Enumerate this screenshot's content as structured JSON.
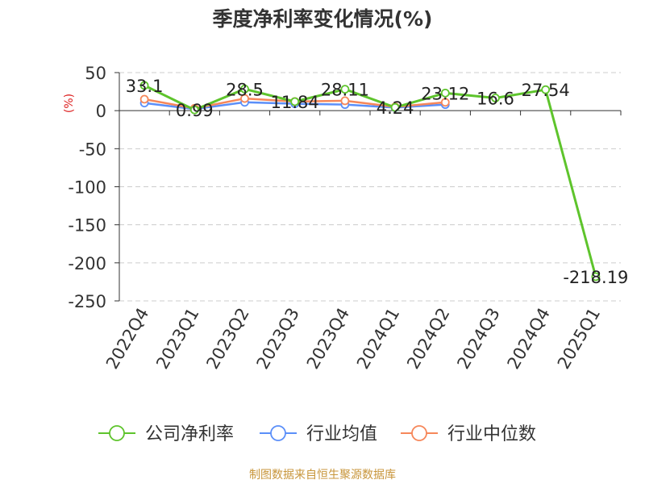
{
  "chart_data": {
    "type": "line",
    "title": "季度净利率变化情况(%)",
    "ylabel": "(%)",
    "categories": [
      "2022Q4",
      "2023Q1",
      "2023Q2",
      "2023Q3",
      "2023Q4",
      "2024Q1",
      "2024Q2",
      "2024Q3",
      "2024Q4",
      "2025Q1"
    ],
    "ylim": [
      -250,
      50
    ],
    "yticks": [
      50,
      0,
      -50,
      -100,
      -150,
      -200,
      -250
    ],
    "grid": true,
    "legend_position": "bottom",
    "series": [
      {
        "name": "公司净利率",
        "color": "#5ec42c",
        "values": [
          33.1,
          0.99,
          28.5,
          11.84,
          28.11,
          4.24,
          23.12,
          16.6,
          27.54,
          -218.19
        ],
        "labels": [
          "33.1",
          "0.99",
          "28.5",
          "11.84",
          "28.11",
          "4.24",
          "23.12",
          "16.6",
          "27.54",
          "-218.19"
        ]
      },
      {
        "name": "行业均值",
        "color": "#5b8ff9",
        "values": [
          10,
          2,
          11,
          9,
          8,
          4,
          8,
          null,
          null,
          null
        ]
      },
      {
        "name": "行业中位数",
        "color": "#f6875a",
        "values": [
          15,
          3,
          16,
          12,
          13,
          5,
          11,
          null,
          null,
          null
        ]
      }
    ]
  },
  "source": "制图数据来自恒生聚源数据库"
}
